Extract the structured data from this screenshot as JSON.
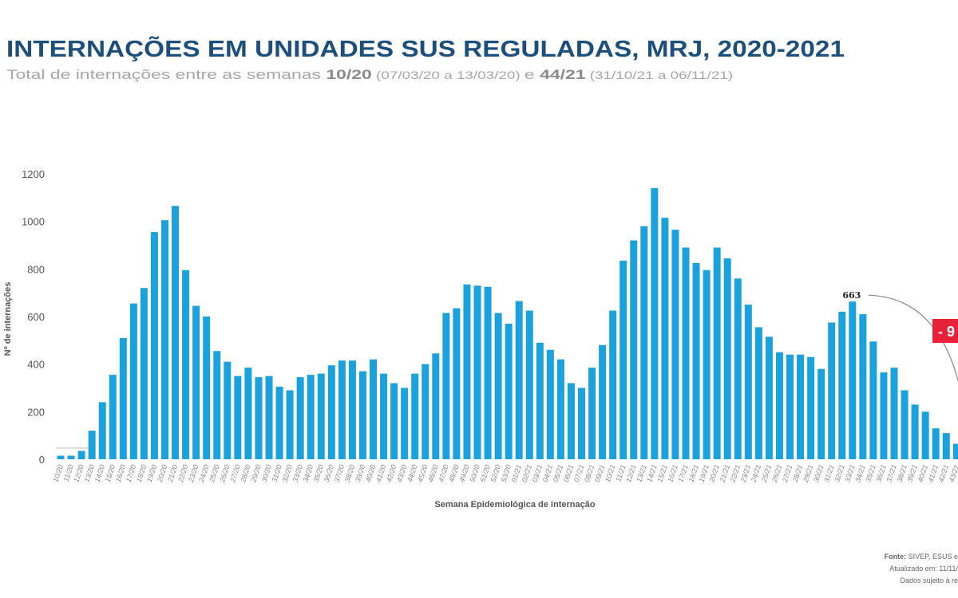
{
  "chart_data": {
    "type": "bar",
    "title": "INTERNAÇÕES EM UNIDADES SUS REGULADAS, MRJ, 2020-2021",
    "subtitle": {
      "prefix": "Total de internações entre as semanas ",
      "week_start": "10/20",
      "range_start": " (07/03/20 a 13/03/20) ",
      "conj": "e ",
      "week_end": "44/21",
      "range_end": " (31/10/21 a 06/11/21)"
    },
    "xlabel": "Semana Epidemiológica de internação",
    "ylabel": "Nº de internações",
    "ylim": [
      0,
      1200
    ],
    "yticks": [
      0,
      200,
      400,
      600,
      800,
      1000,
      1200
    ],
    "bar_color": "#1ba1dc",
    "grid": false,
    "categories": [
      "10/20",
      "11/20",
      "12/20",
      "13/20",
      "14/20",
      "15/20",
      "16/20",
      "17/20",
      "18/20",
      "19/20",
      "20/20",
      "21/20",
      "22/20",
      "23/20",
      "24/20",
      "25/20",
      "26/20",
      "27/20",
      "28/20",
      "29/20",
      "30/20",
      "31/20",
      "32/20",
      "33/20",
      "34/20",
      "35/20",
      "36/20",
      "37/20",
      "38/20",
      "39/20",
      "40/20",
      "41/20",
      "42/20",
      "43/20",
      "44/20",
      "45/20",
      "46/20",
      "47/20",
      "48/20",
      "49/20",
      "50/20",
      "51/20",
      "52/20",
      "53/20",
      "01/21",
      "02/21",
      "03/21",
      "04/21",
      "05/21",
      "06/21",
      "07/21",
      "08/21",
      "09/21",
      "10/21",
      "11/21",
      "12/21",
      "13/21",
      "14/21",
      "15/21",
      "16/21",
      "17/21",
      "18/21",
      "19/21",
      "20/21",
      "21/21",
      "22/21",
      "23/21",
      "24/21",
      "25/21",
      "26/21",
      "27/21",
      "28/21",
      "29/21",
      "30/21",
      "31/21",
      "32/21",
      "33/21",
      "34/21",
      "35/21",
      "36/21",
      "37/21",
      "38/21",
      "39/21",
      "40/21",
      "41/21",
      "42/21",
      "43/21"
    ],
    "values": [
      15,
      15,
      35,
      120,
      240,
      355,
      510,
      655,
      720,
      955,
      1005,
      1065,
      795,
      645,
      600,
      455,
      410,
      350,
      385,
      345,
      350,
      305,
      290,
      345,
      355,
      360,
      395,
      415,
      415,
      370,
      420,
      360,
      320,
      300,
      360,
      400,
      445,
      615,
      635,
      735,
      730,
      725,
      615,
      570,
      665,
      625,
      490,
      460,
      420,
      320,
      300,
      385,
      480,
      625,
      835,
      920,
      980,
      1140,
      1015,
      965,
      890,
      825,
      795,
      890,
      845,
      760,
      650,
      555,
      515,
      450,
      440,
      440,
      430,
      380,
      575,
      620,
      663,
      610,
      495,
      365,
      385,
      290,
      230,
      200,
      130,
      110,
      65
    ],
    "annotations": [
      {
        "category": "33/21",
        "label": "663"
      },
      {
        "label": "- 9",
        "color": "#e8213a"
      }
    ],
    "source": {
      "line1_bold": "Fonte:",
      "line1": " SIVEP, ESUS e",
      "line2": "Atualizado em: 11/11/",
      "line3": "Dados sujeito à re"
    }
  }
}
